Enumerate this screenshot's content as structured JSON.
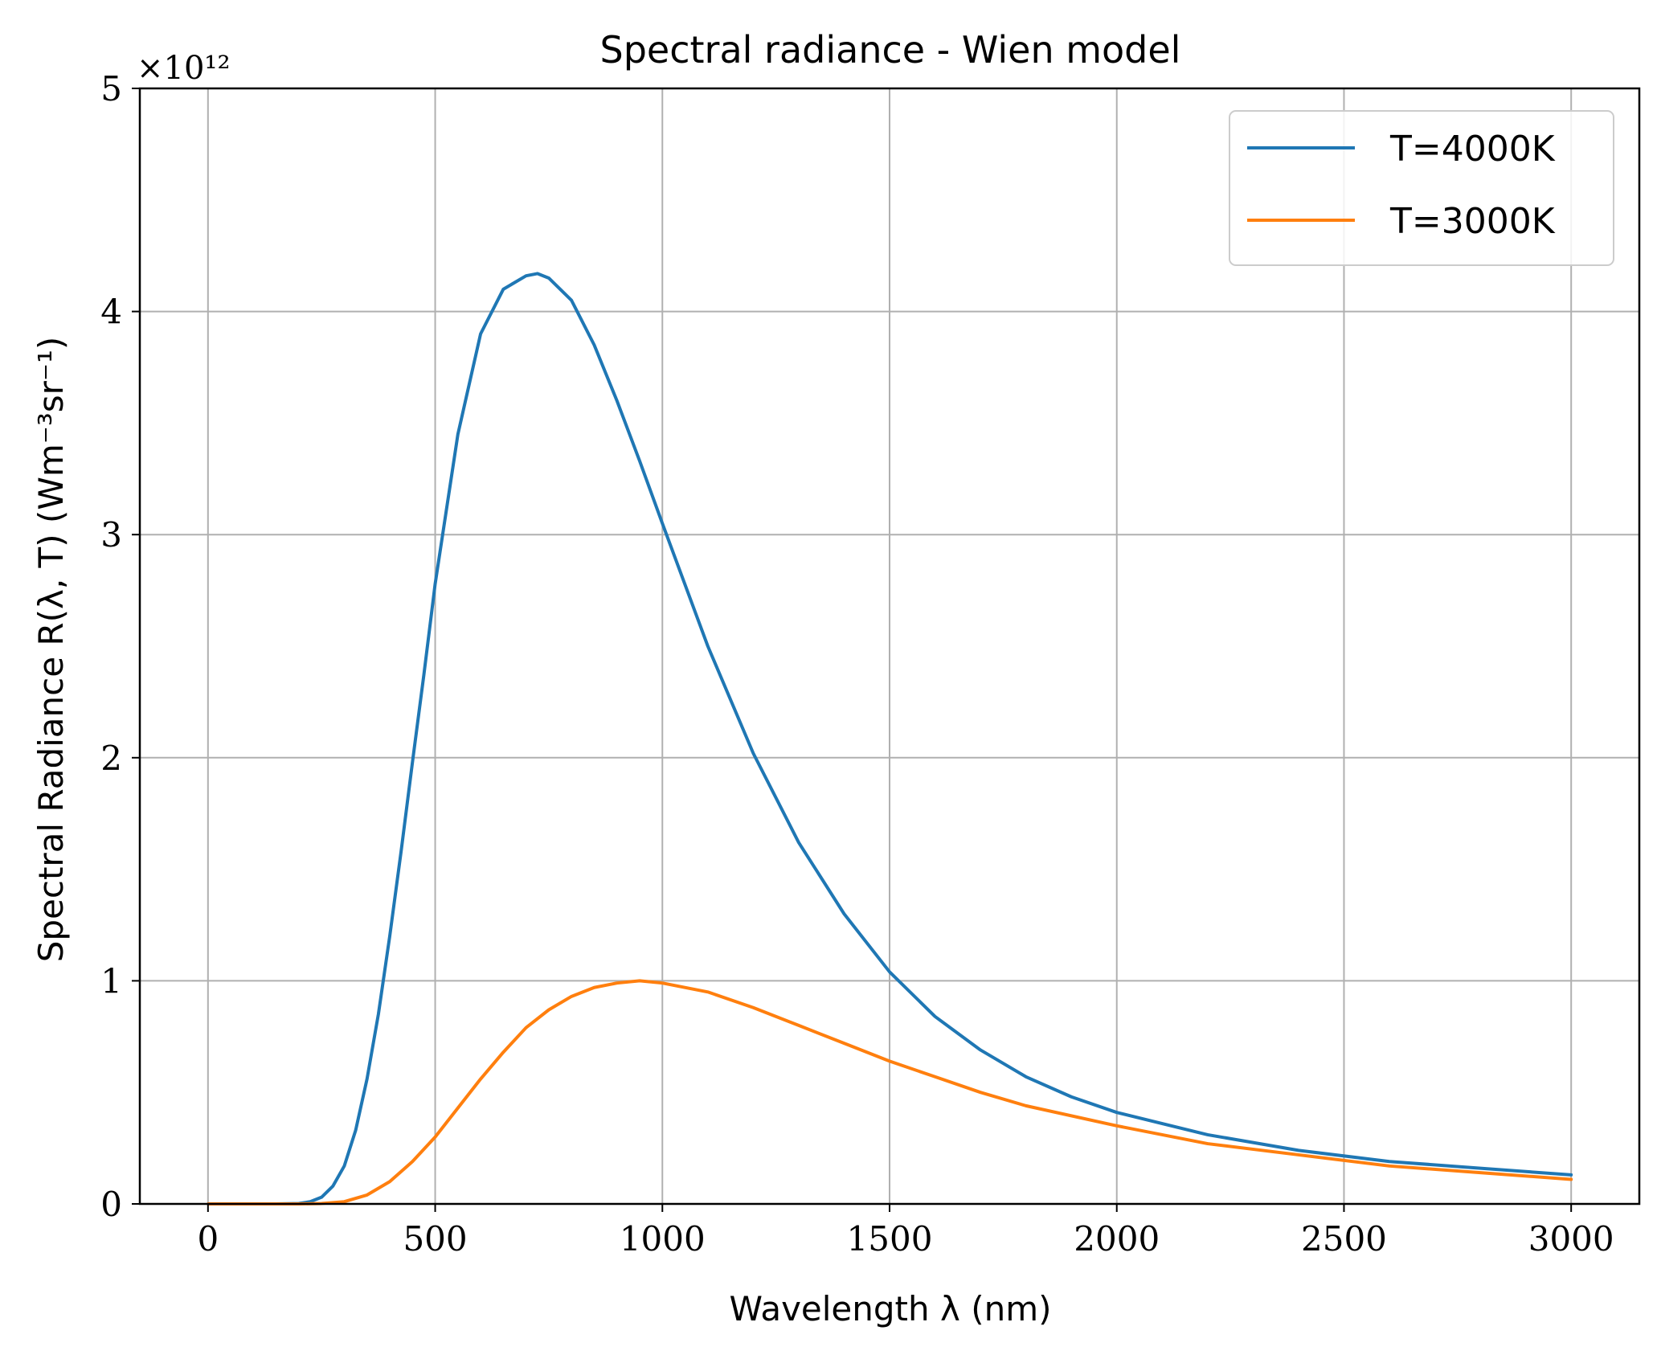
{
  "chart_data": {
    "type": "line",
    "title": "Spectral radiance - Wien model",
    "xlabel": "Wavelength λ (nm)",
    "ylabel": "Spectral Radiance R(λ, T) (Wm⁻³sr⁻¹)",
    "y_multiplier_label": "×10¹²",
    "xlim": [
      -150,
      3150
    ],
    "ylim": [
      0,
      5
    ],
    "y_scale_factor": 1000000000000.0,
    "x_ticks": [
      0,
      500,
      1000,
      1500,
      2000,
      2500,
      3000
    ],
    "x_tick_labels": [
      "0",
      "500",
      "1000",
      "1500",
      "2000",
      "2500",
      "3000"
    ],
    "y_ticks": [
      0,
      1,
      2,
      3,
      4,
      5
    ],
    "y_tick_labels": [
      "0",
      "1",
      "2",
      "3",
      "4",
      "5"
    ],
    "grid": true,
    "legend_position": "top-right",
    "series": [
      {
        "name": "T=4000K",
        "color": "#1f77b4",
        "x": [
          1,
          100,
          150,
          200,
          225,
          250,
          275,
          300,
          325,
          350,
          375,
          400,
          425,
          450,
          475,
          500,
          550,
          600,
          650,
          700,
          725,
          750,
          800,
          850,
          900,
          950,
          1000,
          1100,
          1200,
          1300,
          1400,
          1500,
          1600,
          1700,
          1800,
          1900,
          2000,
          2200,
          2400,
          2600,
          2800,
          3000
        ],
        "y": [
          0,
          0,
          0,
          0.002,
          0.01,
          0.03,
          0.08,
          0.17,
          0.33,
          0.56,
          0.85,
          1.2,
          1.58,
          1.98,
          2.37,
          2.78,
          3.45,
          3.9,
          4.1,
          4.16,
          4.17,
          4.15,
          4.05,
          3.85,
          3.6,
          3.33,
          3.05,
          2.5,
          2.02,
          1.62,
          1.3,
          1.04,
          0.84,
          0.69,
          0.57,
          0.48,
          0.41,
          0.31,
          0.24,
          0.19,
          0.16,
          0.13
        ]
      },
      {
        "name": "T=3000K",
        "color": "#ff7f0e",
        "x": [
          1,
          200,
          250,
          300,
          350,
          400,
          450,
          500,
          550,
          600,
          650,
          700,
          750,
          800,
          850,
          900,
          950,
          1000,
          1100,
          1200,
          1300,
          1400,
          1500,
          1600,
          1700,
          1800,
          2000,
          2200,
          2400,
          2600,
          2800,
          3000
        ],
        "y": [
          0,
          0,
          0.002,
          0.01,
          0.04,
          0.1,
          0.19,
          0.3,
          0.43,
          0.56,
          0.68,
          0.79,
          0.87,
          0.93,
          0.97,
          0.99,
          1.0,
          0.99,
          0.95,
          0.88,
          0.8,
          0.72,
          0.64,
          0.57,
          0.5,
          0.44,
          0.35,
          0.27,
          0.22,
          0.17,
          0.14,
          0.11
        ]
      }
    ]
  }
}
